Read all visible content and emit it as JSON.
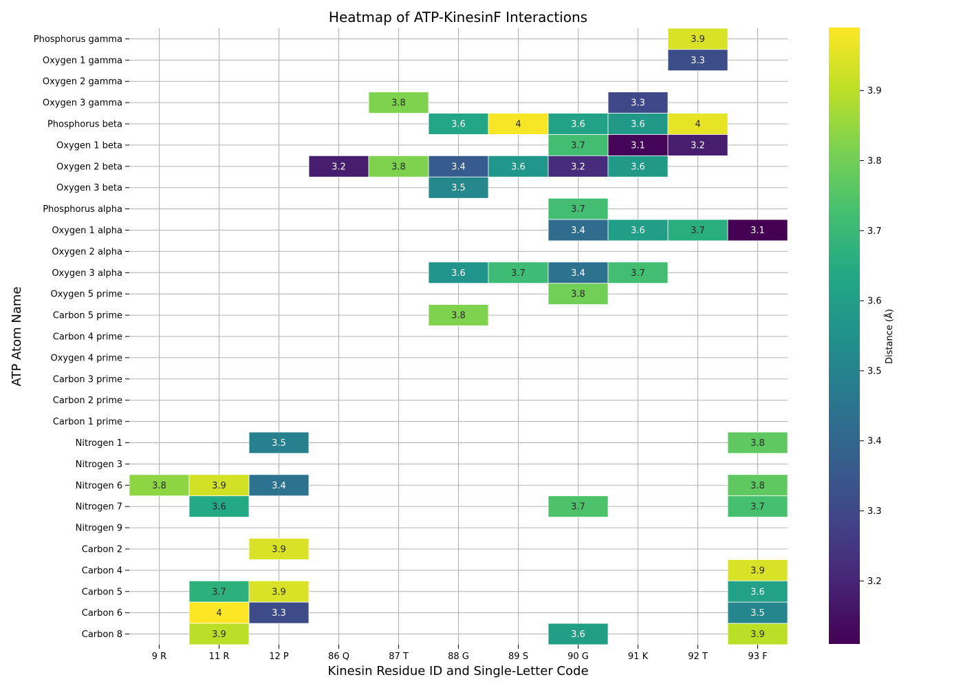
{
  "chart_data": {
    "type": "heatmap",
    "title": "Heatmap of ATP-KinesinF Interactions",
    "xlabel": "Kinesin Residue ID and Single-Letter Code",
    "ylabel": "ATP Atom Name",
    "colorbar_label": "Distance (Å)",
    "colormap": "viridis",
    "color_range": [
      3.11,
      3.99
    ],
    "colorbar_ticks": [
      3.2,
      3.3,
      3.4,
      3.5,
      3.6,
      3.7,
      3.8,
      3.9
    ],
    "grid": true,
    "x_categories": [
      "9 R",
      "11 R",
      "12 P",
      "86 Q",
      "87 T",
      "88 G",
      "89 S",
      "90 G",
      "91 K",
      "92 T",
      "93 F"
    ],
    "y_categories": [
      "Phosphorus gamma",
      "Oxygen 1 gamma",
      "Oxygen 2 gamma",
      "Oxygen 3 gamma",
      "Phosphorus beta",
      "Oxygen 1 beta",
      "Oxygen 2 beta",
      "Oxygen 3 beta",
      "Phosphorus alpha",
      "Oxygen 1 alpha",
      "Oxygen 2 alpha",
      "Oxygen 3 alpha",
      "Oxygen 5 prime",
      "Carbon 5 prime",
      "Carbon 4 prime",
      "Oxygen 4 prime",
      "Carbon 3 prime",
      "Carbon 2 prime",
      "Carbon 1 prime",
      "Nitrogen 1",
      "Nitrogen 3",
      "Nitrogen 6",
      "Nitrogen 7",
      "Nitrogen 9",
      "Carbon 2",
      "Carbon 4",
      "Carbon 5",
      "Carbon 6",
      "Carbon 8"
    ],
    "cells": [
      {
        "x": "92 T",
        "y": "Phosphorus gamma",
        "value": 3.94,
        "label": "3.9"
      },
      {
        "x": "92 T",
        "y": "Oxygen 1 gamma",
        "value": 3.32,
        "label": "3.3"
      },
      {
        "x": "87 T",
        "y": "Oxygen 3 gamma",
        "value": 3.82,
        "label": "3.8"
      },
      {
        "x": "91 K",
        "y": "Oxygen 3 gamma",
        "value": 3.3,
        "label": "3.3"
      },
      {
        "x": "88 G",
        "y": "Phosphorus beta",
        "value": 3.63,
        "label": "3.6"
      },
      {
        "x": "89 S",
        "y": "Phosphorus beta",
        "value": 3.98,
        "label": "4"
      },
      {
        "x": "90 G",
        "y": "Phosphorus beta",
        "value": 3.61,
        "label": "3.6"
      },
      {
        "x": "91 K",
        "y": "Phosphorus beta",
        "value": 3.58,
        "label": "3.6"
      },
      {
        "x": "92 T",
        "y": "Phosphorus beta",
        "value": 3.96,
        "label": "4"
      },
      {
        "x": "90 G",
        "y": "Oxygen 1 beta",
        "value": 3.72,
        "label": "3.7"
      },
      {
        "x": "91 K",
        "y": "Oxygen 1 beta",
        "value": 3.12,
        "label": "3.1"
      },
      {
        "x": "92 T",
        "y": "Oxygen 1 beta",
        "value": 3.18,
        "label": "3.2"
      },
      {
        "x": "86 Q",
        "y": "Oxygen 2 beta",
        "value": 3.18,
        "label": "3.2"
      },
      {
        "x": "87 T",
        "y": "Oxygen 2 beta",
        "value": 3.82,
        "label": "3.8"
      },
      {
        "x": "88 G",
        "y": "Oxygen 2 beta",
        "value": 3.36,
        "label": "3.4"
      },
      {
        "x": "89 S",
        "y": "Oxygen 2 beta",
        "value": 3.57,
        "label": "3.6"
      },
      {
        "x": "90 G",
        "y": "Oxygen 2 beta",
        "value": 3.22,
        "label": "3.2"
      },
      {
        "x": "91 K",
        "y": "Oxygen 2 beta",
        "value": 3.58,
        "label": "3.6"
      },
      {
        "x": "88 G",
        "y": "Oxygen 3 beta",
        "value": 3.52,
        "label": "3.5"
      },
      {
        "x": "90 G",
        "y": "Phosphorus alpha",
        "value": 3.72,
        "label": "3.7"
      },
      {
        "x": "90 G",
        "y": "Oxygen 1 alpha",
        "value": 3.42,
        "label": "3.4"
      },
      {
        "x": "91 K",
        "y": "Oxygen 1 alpha",
        "value": 3.6,
        "label": "3.6"
      },
      {
        "x": "92 T",
        "y": "Oxygen 1 alpha",
        "value": 3.66,
        "label": "3.7"
      },
      {
        "x": "93 F",
        "y": "Oxygen 1 alpha",
        "value": 3.11,
        "label": "3.1"
      },
      {
        "x": "88 G",
        "y": "Oxygen 3 alpha",
        "value": 3.56,
        "label": "3.6"
      },
      {
        "x": "89 S",
        "y": "Oxygen 3 alpha",
        "value": 3.71,
        "label": "3.7"
      },
      {
        "x": "90 G",
        "y": "Oxygen 3 alpha",
        "value": 3.44,
        "label": "3.4"
      },
      {
        "x": "91 K",
        "y": "Oxygen 3 alpha",
        "value": 3.72,
        "label": "3.7"
      },
      {
        "x": "90 G",
        "y": "Oxygen 5 prime",
        "value": 3.8,
        "label": "3.8"
      },
      {
        "x": "88 G",
        "y": "Carbon 5 prime",
        "value": 3.82,
        "label": "3.8"
      },
      {
        "x": "12 P",
        "y": "Nitrogen 1",
        "value": 3.49,
        "label": "3.5"
      },
      {
        "x": "93 F",
        "y": "Nitrogen 1",
        "value": 3.77,
        "label": "3.8"
      },
      {
        "x": "9 R",
        "y": "Nitrogen 6",
        "value": 3.84,
        "label": "3.8"
      },
      {
        "x": "11 R",
        "y": "Nitrogen 6",
        "value": 3.93,
        "label": "3.9"
      },
      {
        "x": "12 P",
        "y": "Nitrogen 6",
        "value": 3.44,
        "label": "3.4"
      },
      {
        "x": "93 F",
        "y": "Nitrogen 6",
        "value": 3.77,
        "label": "3.8"
      },
      {
        "x": "11 R",
        "y": "Nitrogen 7",
        "value": 3.64,
        "label": "3.6"
      },
      {
        "x": "90 G",
        "y": "Nitrogen 7",
        "value": 3.74,
        "label": "3.7"
      },
      {
        "x": "93 F",
        "y": "Nitrogen 7",
        "value": 3.73,
        "label": "3.7"
      },
      {
        "x": "12 P",
        "y": "Carbon 2",
        "value": 3.94,
        "label": "3.9"
      },
      {
        "x": "93 F",
        "y": "Carbon 4",
        "value": 3.94,
        "label": "3.9"
      },
      {
        "x": "11 R",
        "y": "Carbon 5",
        "value": 3.67,
        "label": "3.7"
      },
      {
        "x": "12 P",
        "y": "Carbon 5",
        "value": 3.94,
        "label": "3.9"
      },
      {
        "x": "93 F",
        "y": "Carbon 5",
        "value": 3.61,
        "label": "3.6"
      },
      {
        "x": "11 R",
        "y": "Carbon 6",
        "value": 3.99,
        "label": "4"
      },
      {
        "x": "12 P",
        "y": "Carbon 6",
        "value": 3.31,
        "label": "3.3"
      },
      {
        "x": "93 F",
        "y": "Carbon 6",
        "value": 3.51,
        "label": "3.5"
      },
      {
        "x": "11 R",
        "y": "Carbon 8",
        "value": 3.9,
        "label": "3.9"
      },
      {
        "x": "90 G",
        "y": "Carbon 8",
        "value": 3.6,
        "label": "3.6"
      },
      {
        "x": "93 F",
        "y": "Carbon 8",
        "value": 3.9,
        "label": "3.9"
      }
    ]
  }
}
